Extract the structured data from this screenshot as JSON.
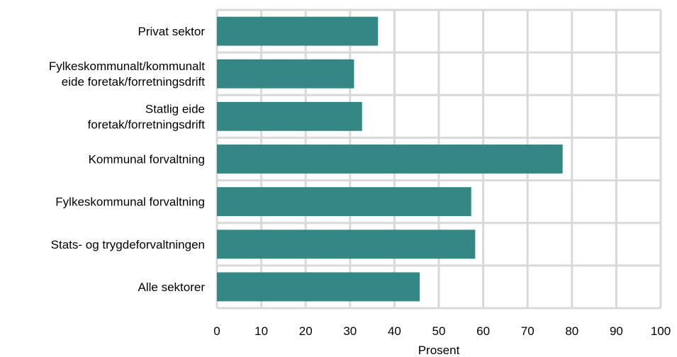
{
  "chart_data": {
    "type": "bar",
    "orientation": "horizontal",
    "categories": [
      [
        "Privat sektor"
      ],
      [
        "Fylkeskommunalt/kommunalt",
        "eide foretak/forretningsdrift"
      ],
      [
        "Statlig eide",
        "foretak/forretningsdrift"
      ],
      [
        "Kommunal forvaltning"
      ],
      [
        "Fylkeskommunal forvaltning"
      ],
      [
        "Stats- og trygdeforvaltningen"
      ],
      [
        "Alle sektorer"
      ]
    ],
    "values": [
      36.3,
      30.9,
      32.7,
      77.9,
      57.3,
      58.2,
      45.7
    ],
    "xlabel": "Prosent",
    "ylabel": "",
    "xlim": [
      0,
      100
    ],
    "xticks": [
      "0",
      "10",
      "20",
      "30",
      "40",
      "50",
      "60",
      "70",
      "80",
      "90",
      "100"
    ],
    "grid": true,
    "legend": "none",
    "bar_color": "#358783",
    "grid_color": "#d9d9d9"
  }
}
